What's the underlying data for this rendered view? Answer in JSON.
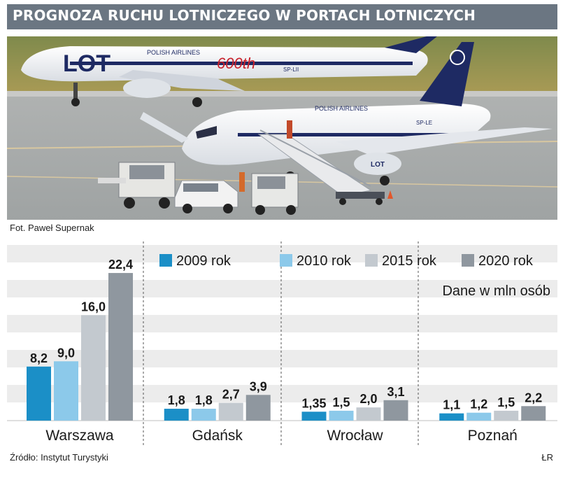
{
  "header": {
    "title": "PROGNOZA RUCHU LOTNICZEGO W PORTACH LOTNICZYCH"
  },
  "photo": {
    "alt": "LOT aircraft at airport apron",
    "plane_text_1": "LOT",
    "plane_text_2": "POLISH AIRLINES",
    "plane_text_3": "600th",
    "plane_text_4": "SP-LII",
    "plane_text_5": "POLISH AIRLINES",
    "plane_text_6": "SP-LE",
    "plane_text_7": "LOT"
  },
  "caption": "Fot. Paweł Supernak",
  "source": "Źródło: Instytut Turystyki",
  "author": "ŁR",
  "colors": {
    "header_bg": "#6b7682",
    "stripe": "#ececec"
  },
  "chart_data": {
    "type": "bar",
    "categories": [
      "Warszawa",
      "Gdańsk",
      "Wrocław",
      "Poznań"
    ],
    "series": [
      {
        "name": "2009 rok",
        "color": "#1b8fc7",
        "values": [
          8.2,
          1.8,
          1.35,
          1.1
        ],
        "labels": [
          "8,2",
          "1,8",
          "1,35",
          "1,1"
        ]
      },
      {
        "name": "2010 rok",
        "color": "#8cc9ea",
        "values": [
          9.0,
          1.8,
          1.5,
          1.2
        ],
        "labels": [
          "9,0",
          "1,8",
          "1,5",
          "1,2"
        ]
      },
      {
        "name": "2015 rok",
        "color": "#c3c9cf",
        "values": [
          16.0,
          2.7,
          2.0,
          1.5
        ],
        "labels": [
          "16,0",
          "2,7",
          "2,0",
          "1,5"
        ]
      },
      {
        "name": "2020 rok",
        "color": "#8f979f",
        "values": [
          22.4,
          3.9,
          3.1,
          2.2
        ],
        "labels": [
          "22,4",
          "3,9",
          "3,1",
          "2,2"
        ]
      }
    ],
    "unit_note": "Dane w mln osób",
    "ylim": [
      0,
      24
    ],
    "legend": "top-right",
    "grid": true
  }
}
